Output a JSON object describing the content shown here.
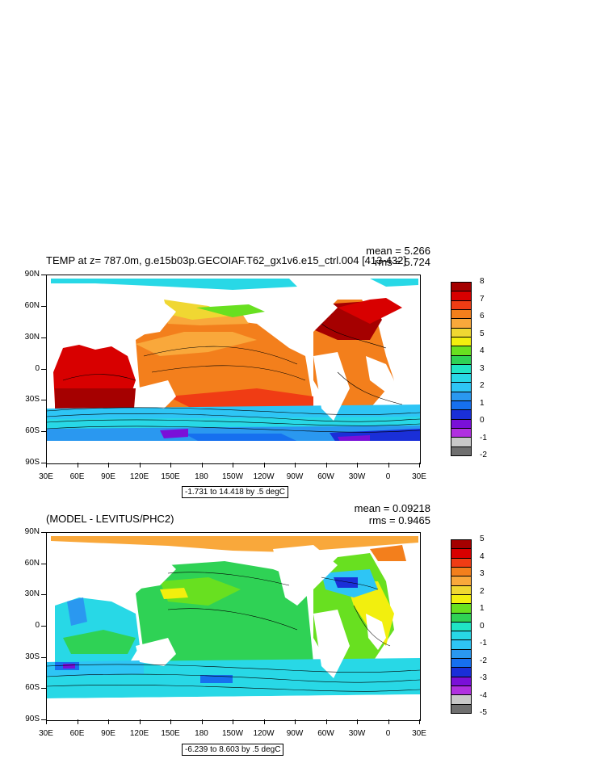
{
  "panel1": {
    "title": "TEMP at z= 787.0m, g.e15b03p.GECOIAF.T62_gx1v6.e15_ctrl.004 [413-432]",
    "mean": "mean = 5.266",
    "rms": "rms = 5.724",
    "info": "-1.731 to 14.418 by .5 degC",
    "colorbar": {
      "labels": [
        "8",
        "7",
        "6",
        "5",
        "4",
        "3",
        "2",
        "1",
        "0",
        "-1",
        "-2"
      ],
      "colors": [
        "#a50000",
        "#d80000",
        "#f03c14",
        "#f37f1c",
        "#f9a83b",
        "#f0d732",
        "#f2ef0e",
        "#68e020",
        "#2fd255",
        "#20e5c5",
        "#28d8e6",
        "#2ec5f5",
        "#2a98f0",
        "#1670ef",
        "#1a2fd8",
        "#7a10d8",
        "#b030e0",
        "#c8c8c8",
        "#6f6f6f"
      ]
    }
  },
  "panel2": {
    "title": "(MODEL - LEVITUS/PHC2)",
    "mean": "mean = 0.09218",
    "rms": "rms = 0.9465",
    "info": "-6.239 to 8.603 by .5 degC",
    "colorbar": {
      "labels": [
        "5",
        "4",
        "3",
        "2",
        "1",
        "0",
        "-1",
        "-2",
        "-3",
        "-4",
        "-5"
      ],
      "colors": [
        "#a50000",
        "#d80000",
        "#f03c14",
        "#f37f1c",
        "#f9a83b",
        "#f0d732",
        "#f2ef0e",
        "#68e020",
        "#2fd255",
        "#20e5c5",
        "#28d8e6",
        "#2ec5f5",
        "#2a98f0",
        "#1670ef",
        "#1a2fd8",
        "#7a10d8",
        "#b030e0",
        "#c8c8c8",
        "#6f6f6f"
      ]
    }
  },
  "axes": {
    "lat_labels": [
      "90N",
      "60N",
      "30N",
      "0",
      "30S",
      "60S",
      "90S"
    ],
    "lon_labels": [
      "30E",
      "60E",
      "90E",
      "120E",
      "150E",
      "180",
      "150W",
      "120W",
      "90W",
      "60W",
      "30W",
      "0",
      "30E"
    ]
  }
}
